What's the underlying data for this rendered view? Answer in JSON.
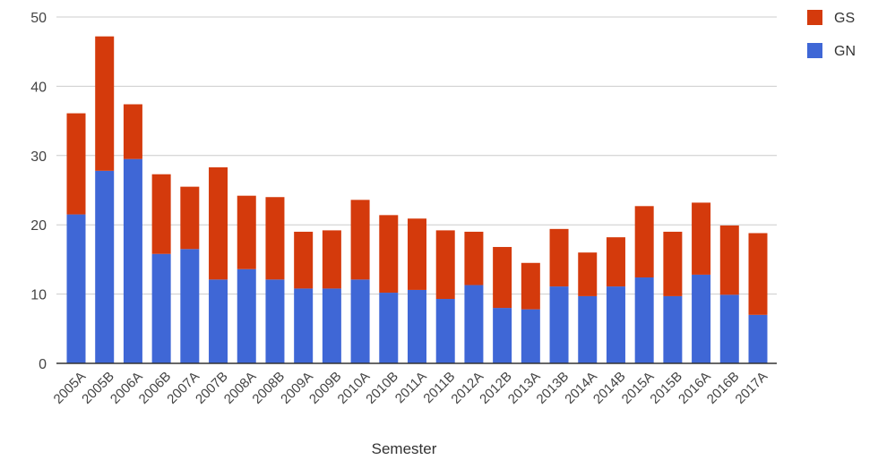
{
  "chart_data": {
    "type": "bar",
    "stacked": true,
    "title": "",
    "xlabel": "Semester",
    "ylabel": "",
    "ylim": [
      0,
      50
    ],
    "yticks": [
      0,
      10,
      20,
      30,
      40,
      50
    ],
    "grid": true,
    "legend_position": "top-right",
    "categories": [
      "2005A",
      "2005B",
      "2006A",
      "2006B",
      "2007A",
      "2007B",
      "2008A",
      "2008B",
      "2009A",
      "2009B",
      "2010A",
      "2010B",
      "2011A",
      "2011B",
      "2012A",
      "2012B",
      "2013A",
      "2013B",
      "2014A",
      "2014B",
      "2015A",
      "2015B",
      "2016A",
      "2016B",
      "2017A"
    ],
    "series": [
      {
        "name": "GN",
        "color": "#3f67d6",
        "values": [
          21.5,
          27.8,
          29.5,
          15.8,
          16.5,
          12.1,
          13.6,
          12.1,
          10.8,
          10.8,
          12.1,
          10.2,
          10.6,
          9.3,
          11.3,
          8.0,
          7.8,
          11.1,
          9.7,
          11.1,
          12.4,
          9.7,
          12.8,
          9.9,
          7.0
        ]
      },
      {
        "name": "GS",
        "color": "#d43a0c",
        "values": [
          14.6,
          19.4,
          7.9,
          11.5,
          9.0,
          16.2,
          10.6,
          11.9,
          8.2,
          8.4,
          11.5,
          11.2,
          10.3,
          9.9,
          7.7,
          8.8,
          6.7,
          8.3,
          6.3,
          7.1,
          10.3,
          9.3,
          10.4,
          10.0,
          11.8
        ]
      }
    ]
  }
}
